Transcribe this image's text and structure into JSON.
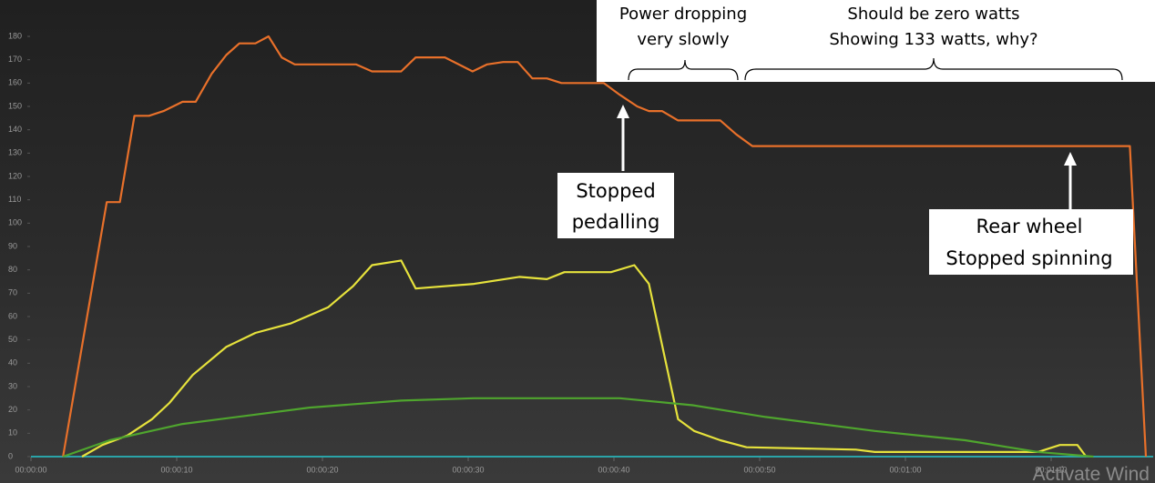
{
  "chart_data": {
    "type": "line",
    "xlim": [
      0,
      77
    ],
    "ylim": [
      0,
      180
    ],
    "xticks": [
      {
        "value": 0,
        "label": "00:00:00"
      },
      {
        "value": 10,
        "label": "00:00:10"
      },
      {
        "value": 20,
        "label": "00:00:20"
      },
      {
        "value": 30,
        "label": "00:00:30"
      },
      {
        "value": 40,
        "label": "00:00:40"
      },
      {
        "value": 50,
        "label": "00:00:50"
      },
      {
        "value": 60,
        "label": "00:01:00"
      },
      {
        "value": 70,
        "label": "00:01:10"
      }
    ],
    "yticks": [
      0,
      10,
      20,
      30,
      40,
      50,
      60,
      70,
      80,
      90,
      100,
      110,
      120,
      130,
      140,
      150,
      160,
      170,
      180
    ],
    "series": [
      {
        "color": "#e8702a",
        "x": [
          2.2,
          5.2,
          6.1,
          7.1,
          8.1,
          9.1,
          10.4,
          11.3,
          12.4,
          13.4,
          14.3,
          15.4,
          16.3,
          17.2,
          18.1,
          19.1,
          22.3,
          23.4,
          25.4,
          26.4,
          28.4,
          30.3,
          31.3,
          32.4,
          33.4,
          34.4,
          35.4,
          36.4,
          39.3,
          40.4,
          41.6,
          42.4,
          43.3,
          44.4,
          47.3,
          48.4,
          49.5,
          75.4,
          76.5
        ],
        "values": [
          0,
          109,
          109,
          146,
          146,
          148,
          152,
          152,
          164,
          172,
          177,
          177,
          180,
          171,
          168,
          168,
          168,
          165,
          165,
          171,
          171,
          165,
          168,
          169,
          169,
          162,
          162,
          160,
          160,
          155,
          150,
          148,
          148,
          144,
          144,
          138,
          133,
          133,
          0
        ]
      },
      {
        "color": "#e6e23c",
        "x": [
          3.5,
          4.9,
          6.6,
          8.3,
          9.5,
          11.1,
          13.4,
          15.4,
          16.6,
          17.8,
          19.3,
          20.4,
          22.1,
          23.4,
          25.4,
          26.4,
          30.4,
          33.5,
          35.4,
          36.6,
          39.8,
          41.4,
          42.4,
          44.4,
          45.5,
          47.3,
          49.1,
          56.6,
          57.9,
          69.1,
          70.6,
          71.8,
          72.4
        ],
        "values": [
          0,
          5,
          9,
          16,
          23,
          35,
          47,
          53,
          55,
          57,
          61,
          64,
          73,
          82,
          84,
          72,
          74,
          77,
          76,
          79,
          79,
          82,
          74,
          16,
          11,
          7,
          4,
          3,
          2,
          2,
          5,
          5,
          0
        ]
      },
      {
        "color": "#4fa52e",
        "x": [
          2.2,
          5.4,
          10.4,
          15.4,
          19.1,
          25.4,
          30.4,
          40.4,
          45.4,
          50.4,
          57.9,
          64.1,
          69.1,
          72.9
        ],
        "values": [
          0,
          7,
          14,
          18,
          21,
          24,
          25,
          25,
          22,
          17,
          11,
          7,
          2,
          0
        ]
      }
    ],
    "annotations": [
      "Power dropping",
      "very slowly",
      "Should be zero watts",
      "Showing 133 watts, why?",
      "Stopped",
      "pedalling",
      "Rear wheel",
      "Stopped spinning"
    ],
    "watermark": "Activate Wind"
  }
}
